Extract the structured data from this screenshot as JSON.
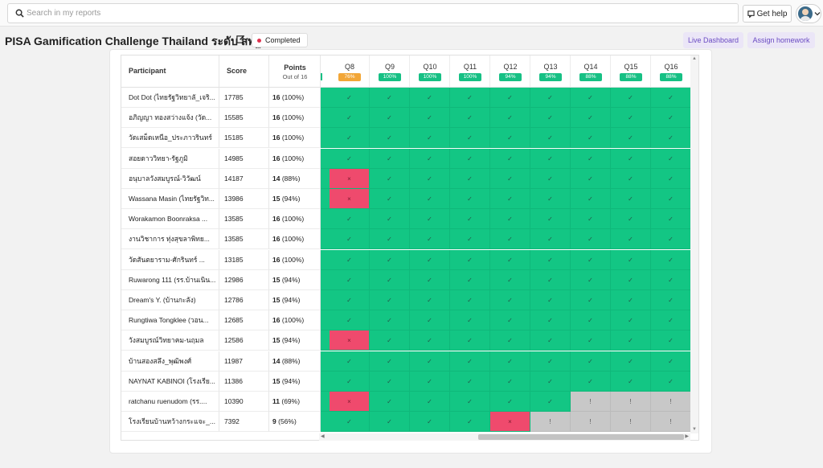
{
  "topbar": {
    "search_placeholder": "Search in my reports",
    "help_label": "Get help"
  },
  "report": {
    "title": "PISA Gamification Challenge Thailand ระดับ สพฐ",
    "status": "Completed",
    "live_dashboard_label": "Live Dashboard",
    "assign_homework_label": "Assign homework"
  },
  "table": {
    "col_participant": "Participant",
    "col_score": "Score",
    "col_points": "Points",
    "col_points_sub": "Out of 16",
    "questions": [
      {
        "label": "Q8",
        "pct": "76%",
        "warn": true
      },
      {
        "label": "Q9",
        "pct": "100%",
        "warn": false
      },
      {
        "label": "Q10",
        "pct": "100%",
        "warn": false
      },
      {
        "label": "Q11",
        "pct": "100%",
        "warn": false
      },
      {
        "label": "Q12",
        "pct": "94%",
        "warn": false
      },
      {
        "label": "Q13",
        "pct": "94%",
        "warn": false
      },
      {
        "label": "Q14",
        "pct": "88%",
        "warn": false
      },
      {
        "label": "Q15",
        "pct": "88%",
        "warn": false
      },
      {
        "label": "Q16",
        "pct": "88%",
        "warn": false
      }
    ],
    "rows": [
      {
        "name": "Dot Dot (ไทยรัฐวิทยาลั_เจริ...",
        "score": "17785",
        "pts": "16",
        "pct": "(100%)",
        "answers": [
          "ok",
          "ok",
          "ok",
          "ok",
          "ok",
          "ok",
          "ok",
          "ok",
          "ok"
        ]
      },
      {
        "name": "อภิญญา ทองสว่างแจ้ง (วัด...",
        "score": "15585",
        "pts": "16",
        "pct": "(100%)",
        "answers": [
          "ok",
          "ok",
          "ok",
          "ok",
          "ok",
          "ok",
          "ok",
          "ok",
          "ok"
        ]
      },
      {
        "name": "วัดเสม็ดเหนือ_ประภาวรินทร์",
        "score": "15185",
        "pts": "16",
        "pct": "(100%)",
        "answers": [
          "ok",
          "ok",
          "ok",
          "ok",
          "ok",
          "ok",
          "ok",
          "ok",
          "ok"
        ]
      },
      {
        "name": "สอยดาววิทยา-รัฐภูมิ",
        "score": "14985",
        "pts": "16",
        "pct": "(100%)",
        "answers": [
          "ok",
          "ok",
          "ok",
          "ok",
          "ok",
          "ok",
          "ok",
          "ok",
          "ok"
        ]
      },
      {
        "name": "อนุบาลวังสมบูรณ์-วิวัฒน์",
        "score": "14187",
        "pts": "14",
        "pct": "(88%)",
        "answers": [
          "bad",
          "ok",
          "ok",
          "ok",
          "ok",
          "ok",
          "ok",
          "ok",
          "ok"
        ]
      },
      {
        "name": "Wassana Masin (ไทยรัฐวิท...",
        "score": "13986",
        "pts": "15",
        "pct": "(94%)",
        "answers": [
          "bad",
          "ok",
          "ok",
          "ok",
          "ok",
          "ok",
          "ok",
          "ok",
          "ok"
        ]
      },
      {
        "name": "Worakamon Boonraksa ...",
        "score": "13585",
        "pts": "16",
        "pct": "(100%)",
        "answers": [
          "ok",
          "ok",
          "ok",
          "ok",
          "ok",
          "ok",
          "ok",
          "ok",
          "ok"
        ]
      },
      {
        "name": "งานวิชาการ ทุ่งสุขลาพิทย...",
        "score": "13585",
        "pts": "16",
        "pct": "(100%)",
        "answers": [
          "ok",
          "ok",
          "ok",
          "ok",
          "ok",
          "ok",
          "ok",
          "ok",
          "ok"
        ]
      },
      {
        "name": "วัดสันตยาราม-ศักรินทร์ ...",
        "score": "13185",
        "pts": "16",
        "pct": "(100%)",
        "answers": [
          "ok",
          "ok",
          "ok",
          "ok",
          "ok",
          "ok",
          "ok",
          "ok",
          "ok"
        ]
      },
      {
        "name": "Ruwarong 111 (รร.บ้านเนิน...",
        "score": "12986",
        "pts": "15",
        "pct": "(94%)",
        "answers": [
          "ok",
          "ok",
          "ok",
          "ok",
          "ok",
          "ok",
          "ok",
          "ok",
          "ok"
        ]
      },
      {
        "name": "Dream's Y. (บ้านกะลัง)",
        "score": "12786",
        "pts": "15",
        "pct": "(94%)",
        "answers": [
          "ok",
          "ok",
          "ok",
          "ok",
          "ok",
          "ok",
          "ok",
          "ok",
          "ok"
        ]
      },
      {
        "name": "Rungtiwa Tongklee (วอน...",
        "score": "12685",
        "pts": "16",
        "pct": "(100%)",
        "answers": [
          "ok",
          "ok",
          "ok",
          "ok",
          "ok",
          "ok",
          "ok",
          "ok",
          "ok"
        ]
      },
      {
        "name": "วังสมบูรณ์วิทยาคม-นฤมล",
        "score": "12586",
        "pts": "15",
        "pct": "(94%)",
        "answers": [
          "bad",
          "ok",
          "ok",
          "ok",
          "ok",
          "ok",
          "ok",
          "ok",
          "ok"
        ]
      },
      {
        "name": "บ้านสองสลึง_พุฒิพงศ์",
        "score": "11987",
        "pts": "14",
        "pct": "(88%)",
        "answers": [
          "ok",
          "ok",
          "ok",
          "ok",
          "ok",
          "ok",
          "ok",
          "ok",
          "ok"
        ]
      },
      {
        "name": "NAYNAT KABINOI (โรงเรีย...",
        "score": "11386",
        "pts": "15",
        "pct": "(94%)",
        "answers": [
          "ok",
          "ok",
          "ok",
          "ok",
          "ok",
          "ok",
          "ok",
          "ok",
          "ok"
        ]
      },
      {
        "name": "ratchanu ruenudom (รร....",
        "score": "10390",
        "pts": "11",
        "pct": "(69%)",
        "answers": [
          "bad",
          "ok",
          "ok",
          "ok",
          "ok",
          "ok",
          "na",
          "na",
          "na"
        ]
      },
      {
        "name": "โรงเรียนบ้านหว้างกระแจะ_...",
        "score": "7392",
        "pts": "9",
        "pct": "(56%)",
        "answers": [
          "ok",
          "ok",
          "ok",
          "ok",
          "bad",
          "na",
          "na",
          "na",
          "na"
        ]
      }
    ],
    "marks": {
      "ok": "✓",
      "bad": "×",
      "na": "!"
    }
  }
}
